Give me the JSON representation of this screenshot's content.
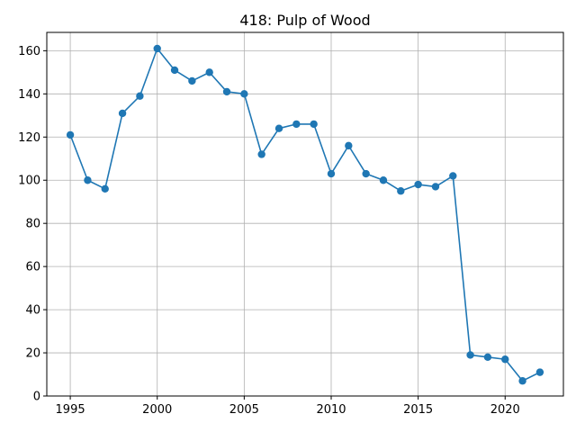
{
  "chart_data": {
    "type": "line",
    "title": "418: Pulp of Wood",
    "xlabel": "",
    "ylabel": "",
    "xlim": [
      1993.65,
      2023.35
    ],
    "ylim": [
      0,
      168.5
    ],
    "x_ticks": [
      1995,
      2000,
      2005,
      2010,
      2015,
      2020
    ],
    "y_ticks": [
      0,
      20,
      40,
      60,
      80,
      100,
      120,
      140,
      160
    ],
    "grid": true,
    "marker": "circle",
    "color": "#1f77b4",
    "x": [
      1995,
      1996,
      1997,
      1998,
      1999,
      2000,
      2001,
      2002,
      2003,
      2004,
      2005,
      2006,
      2007,
      2008,
      2009,
      2010,
      2011,
      2012,
      2013,
      2014,
      2015,
      2016,
      2017,
      2018,
      2019,
      2020,
      2021,
      2022
    ],
    "series": [
      {
        "values": [
          121,
          100,
          96,
          131,
          139,
          161,
          151,
          146,
          150,
          141,
          140,
          112,
          124,
          126,
          126,
          103,
          116,
          103,
          100,
          95,
          98,
          97,
          102,
          19,
          18,
          17,
          7,
          11
        ]
      }
    ]
  }
}
